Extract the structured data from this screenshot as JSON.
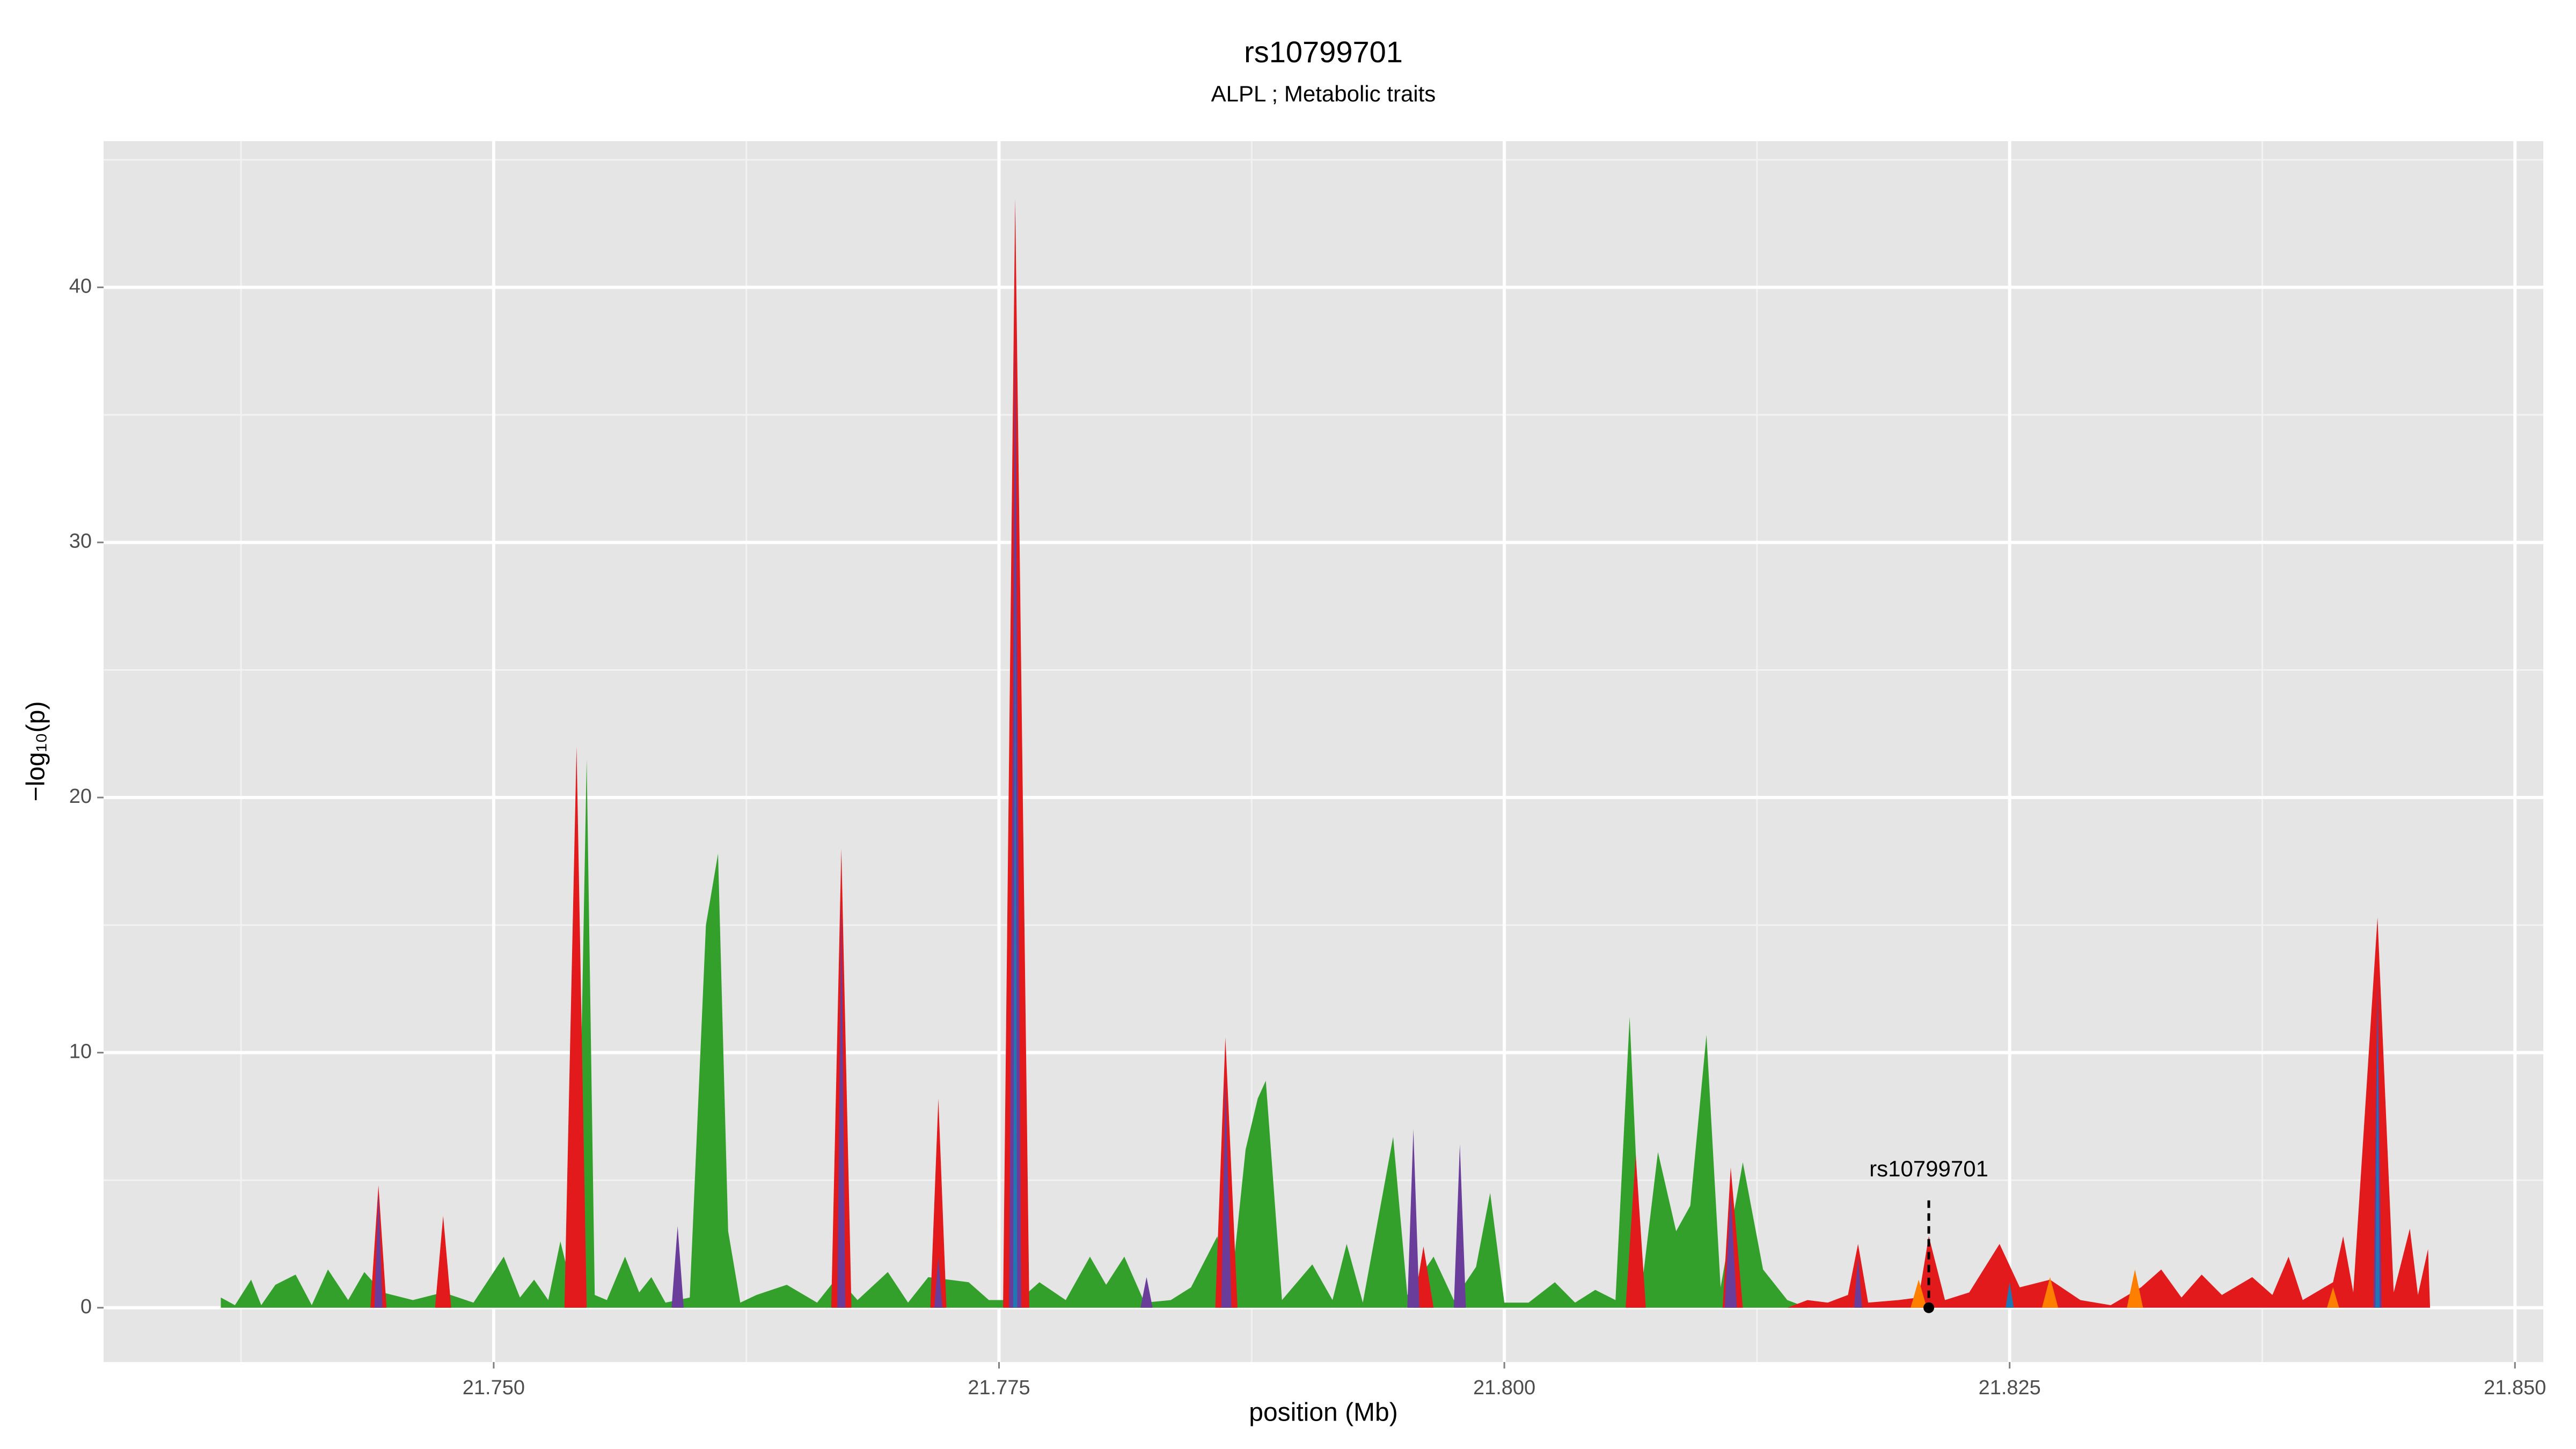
{
  "chart_data": {
    "type": "area",
    "title": "rs10799701",
    "subtitle": "ALPL ; Metabolic traits",
    "xlabel": "position (Mb)",
    "ylabel": "−log₁₀(p)",
    "xlim": [
      21.7307,
      21.8514
    ],
    "ylim": [
      -2.13,
      45.73
    ],
    "xticks": [
      {
        "value": 21.75,
        "label": "21.750"
      },
      {
        "value": 21.775,
        "label": "21.775"
      },
      {
        "value": 21.8,
        "label": "21.800"
      },
      {
        "value": 21.825,
        "label": "21.825"
      },
      {
        "value": 21.85,
        "label": "21.850"
      }
    ],
    "yticks": [
      0,
      10,
      20,
      30,
      40
    ],
    "x_minor_breaks": [
      21.7375,
      21.7625,
      21.7875,
      21.8125,
      21.8375
    ],
    "y_minor_breaks": [
      5,
      15,
      25,
      35,
      45
    ],
    "grid": true,
    "series": [
      {
        "color": "#33a02c",
        "x": [
          21.7365,
          21.7372,
          21.738,
          21.7385,
          21.7392,
          21.7402,
          21.741,
          21.7418,
          21.7428,
          21.7436,
          21.7445,
          21.746,
          21.7475,
          21.749,
          21.7505,
          21.7513,
          21.752,
          21.7527,
          21.7533,
          21.7541,
          21.7546,
          21.755,
          21.7556,
          21.7565,
          21.7572,
          21.7578,
          21.7585,
          21.7597,
          21.7605,
          21.7611,
          21.7616,
          21.7622,
          21.763,
          21.7645,
          21.766,
          21.767,
          21.768,
          21.7695,
          21.7705,
          21.7715,
          21.7735,
          21.7745,
          21.776,
          21.777,
          21.7783,
          21.7795,
          21.7803,
          21.7812,
          21.7822,
          21.7835,
          21.7845,
          21.7858,
          21.7864,
          21.7872,
          21.7878,
          21.7882,
          21.789,
          21.7905,
          21.7915,
          21.7922,
          21.793,
          21.7945,
          21.7952,
          21.7965,
          21.7975,
          21.7986,
          21.7993,
          21.8,
          21.8012,
          21.8025,
          21.8035,
          21.8045,
          21.8055,
          21.8062,
          21.8068,
          21.8076,
          21.8085,
          21.8092,
          21.81,
          21.8107,
          21.8118,
          21.8128,
          21.814,
          21.815
        ],
        "values": [
          0.4,
          0.1,
          1.1,
          0.1,
          0.9,
          1.3,
          0.1,
          1.5,
          0.3,
          1.4,
          0.6,
          0.3,
          0.6,
          0.2,
          2.0,
          0.4,
          1.1,
          0.3,
          2.6,
          0,
          21.5,
          0.5,
          0.3,
          2.0,
          0.6,
          1.2,
          0.2,
          0.4,
          15,
          17.8,
          3.0,
          0.2,
          0.5,
          0.9,
          0.2,
          1.2,
          0.3,
          1.4,
          0.2,
          1.2,
          1.0,
          0.3,
          0.3,
          1.0,
          0.3,
          2.0,
          0.9,
          2.0,
          0.2,
          0.3,
          0.8,
          2.8,
          0.1,
          6.2,
          8.2,
          8.9,
          0.3,
          1.7,
          0.3,
          2.5,
          0.2,
          6.7,
          0.5,
          2.0,
          0.3,
          1.6,
          4.5,
          0.2,
          0.2,
          1.0,
          0.2,
          0.7,
          0.3,
          11.4,
          0.8,
          6.1,
          3.0,
          4.0,
          10.7,
          0.8,
          5.7,
          1.5,
          0.3,
          0
        ]
      },
      {
        "color": "#e31a1c",
        "x": [
          21.7439,
          21.7443,
          21.7447,
          21.7471,
          21.7475,
          21.7479,
          21.7535,
          21.7541,
          21.7546,
          21.7667,
          21.7672,
          21.7677,
          21.7716,
          21.772,
          21.7724,
          21.7752,
          21.7758,
          21.7765,
          21.7857,
          21.7862,
          21.7868,
          21.7955,
          21.796,
          21.7965,
          21.806,
          21.8065,
          21.807,
          21.8108,
          21.8112,
          21.8118,
          21.814,
          21.815,
          21.816,
          21.817,
          21.8175,
          21.818,
          21.8195,
          21.8205,
          21.821,
          21.8218,
          21.823,
          21.8245,
          21.8255,
          21.827,
          21.8285,
          21.83,
          21.8315,
          21.8325,
          21.8335,
          21.8345,
          21.8355,
          21.837,
          21.838,
          21.8388,
          21.8395,
          21.841,
          21.8415,
          21.842,
          21.8432,
          21.844,
          21.8448,
          21.8452,
          21.8457,
          21.8458
        ],
        "values": [
          0,
          4.8,
          0,
          0,
          3.6,
          0,
          0,
          22.0,
          0,
          0,
          18.0,
          0,
          0,
          8.2,
          0,
          0,
          43.5,
          0,
          0,
          10.6,
          0,
          0,
          2.4,
          0,
          0,
          6.0,
          0,
          0,
          5.5,
          0,
          0,
          0.3,
          0.2,
          0.5,
          2.5,
          0.2,
          0.3,
          0.4,
          2.8,
          0.3,
          0.6,
          2.5,
          0.8,
          1.1,
          0.3,
          0.1,
          0.8,
          1.5,
          0.4,
          1.3,
          0.5,
          1.2,
          0.5,
          2.0,
          0.3,
          1.0,
          2.8,
          0.6,
          15.3,
          0.6,
          3.1,
          0.5,
          2.3,
          0
        ]
      },
      {
        "color": "#6a3d9a",
        "x": [
          21.7441,
          21.7443,
          21.7445,
          21.7588,
          21.7591,
          21.7594,
          21.767,
          21.7672,
          21.7674,
          21.7718,
          21.772,
          21.7722,
          21.7755,
          21.7758,
          21.7761,
          21.782,
          21.7823,
          21.7826,
          21.786,
          21.7862,
          21.7865,
          21.7952,
          21.7955,
          21.7958,
          21.7975,
          21.7978,
          21.7981,
          21.8109,
          21.8112,
          21.8115,
          21.8173,
          21.8175,
          21.8177,
          21.843,
          21.8432,
          21.8434
        ],
        "values": [
          0,
          4.5,
          0,
          0,
          3.2,
          0,
          0,
          16,
          0,
          0,
          2.0,
          0,
          0,
          38,
          0,
          0,
          1.2,
          0,
          0,
          9,
          0,
          0,
          7.0,
          0,
          0,
          6.4,
          0,
          0,
          4.5,
          0,
          0,
          2.0,
          0,
          0,
          13,
          0
        ]
      },
      {
        "color": "#1f78b4",
        "x": [
          21.7757,
          21.7758,
          21.7759,
          21.8248,
          21.825,
          21.8252,
          21.8431,
          21.8432,
          21.8433
        ],
        "values": [
          0,
          30,
          0,
          0,
          1.0,
          0,
          0,
          12,
          0
        ]
      },
      {
        "color": "#ff7f00",
        "x": [
          21.8201,
          21.8205,
          21.8209,
          21.8266,
          21.827,
          21.8274,
          21.8308,
          21.8312,
          21.8316,
          21.8407,
          21.841,
          21.8413
        ],
        "values": [
          0,
          1.1,
          0,
          0,
          1.2,
          0,
          0,
          1.5,
          0,
          0,
          0.8,
          0
        ]
      }
    ],
    "annotation": {
      "text": "rs10799701",
      "x": 21.821,
      "y": 0
    }
  }
}
